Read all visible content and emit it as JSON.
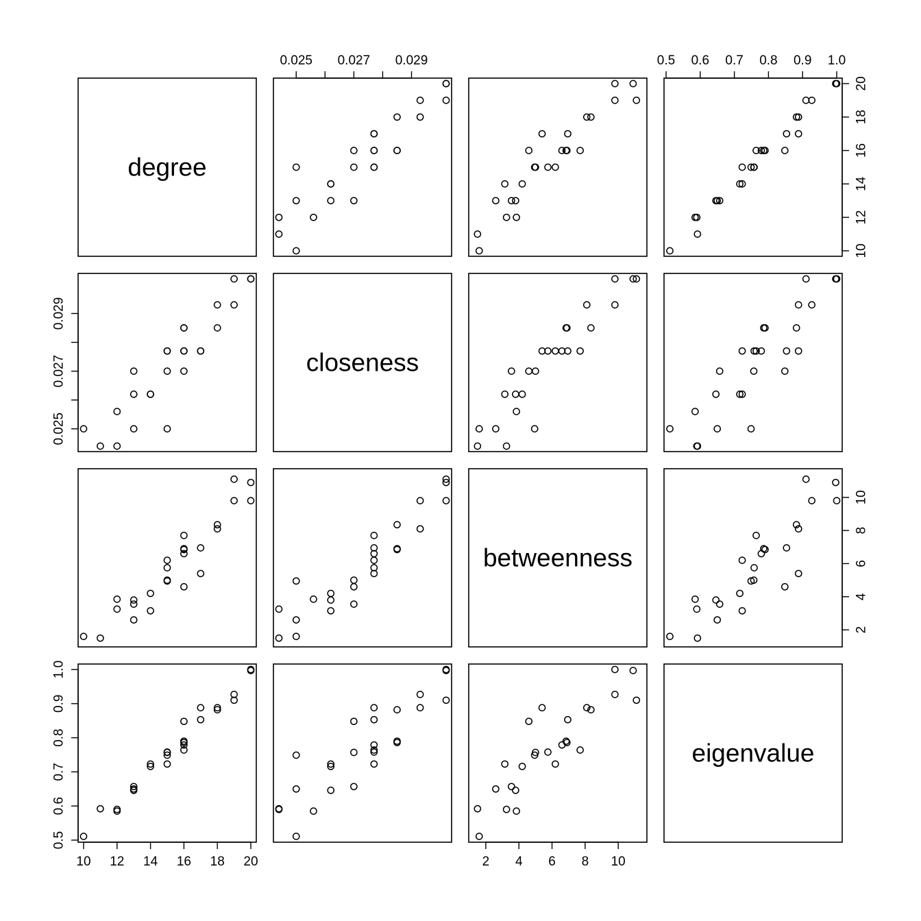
{
  "chart_data": {
    "type": "scatter",
    "title": "",
    "variables": [
      "degree",
      "closeness",
      "betweenness",
      "eigenvalue"
    ],
    "ranges": {
      "degree": [
        10,
        20
      ],
      "closeness": [
        0.0244,
        0.0302
      ],
      "betweenness": [
        1.3,
        11.4
      ],
      "eigenvalue": [
        0.51,
        1.0
      ]
    },
    "ticks": {
      "degree": [
        10,
        12,
        14,
        16,
        18,
        20
      ],
      "closeness": [
        0.025,
        0.026,
        0.027,
        0.028,
        0.029
      ],
      "betweenness": [
        2,
        4,
        6,
        8,
        10
      ],
      "eigenvalue": [
        0.5,
        0.6,
        0.7,
        0.8,
        0.9,
        1.0
      ]
    },
    "tick_labels": {
      "degree": [
        "10",
        "12",
        "14",
        "16",
        "18",
        "20"
      ],
      "closeness": [
        "0.025",
        "",
        "0.027",
        "",
        "0.029"
      ],
      "betweenness": [
        "2",
        "4",
        "6",
        "8",
        "10"
      ],
      "eigenvalue": [
        "0.5",
        "0.6",
        "0.7",
        "0.8",
        "0.9",
        "1.0"
      ]
    },
    "observations": [
      {
        "degree": 20,
        "closeness": 0.0302,
        "betweenness": 9.8,
        "eigenvalue": 1.0
      },
      {
        "degree": 20,
        "closeness": 0.0302,
        "betweenness": 10.9,
        "eigenvalue": 0.997
      },
      {
        "degree": 19,
        "closeness": 0.0302,
        "betweenness": 11.1,
        "eigenvalue": 0.91
      },
      {
        "degree": 19,
        "closeness": 0.0293,
        "betweenness": 9.8,
        "eigenvalue": 0.927
      },
      {
        "degree": 18,
        "closeness": 0.0293,
        "betweenness": 8.1,
        "eigenvalue": 0.888
      },
      {
        "degree": 18,
        "closeness": 0.0285,
        "betweenness": 8.35,
        "eigenvalue": 0.882
      },
      {
        "degree": 17,
        "closeness": 0.0277,
        "betweenness": 5.4,
        "eigenvalue": 0.888
      },
      {
        "degree": 17,
        "closeness": 0.0277,
        "betweenness": 6.95,
        "eigenvalue": 0.853
      },
      {
        "degree": 16,
        "closeness": 0.0285,
        "betweenness": 6.9,
        "eigenvalue": 0.786
      },
      {
        "degree": 16,
        "closeness": 0.0285,
        "betweenness": 6.85,
        "eigenvalue": 0.79
      },
      {
        "degree": 16,
        "closeness": 0.0277,
        "betweenness": 6.6,
        "eigenvalue": 0.779
      },
      {
        "degree": 16,
        "closeness": 0.0277,
        "betweenness": 7.7,
        "eigenvalue": 0.764
      },
      {
        "degree": 16,
        "closeness": 0.027,
        "betweenness": 4.6,
        "eigenvalue": 0.848
      },
      {
        "degree": 15,
        "closeness": 0.0277,
        "betweenness": 6.2,
        "eigenvalue": 0.723
      },
      {
        "degree": 15,
        "closeness": 0.0277,
        "betweenness": 5.75,
        "eigenvalue": 0.758
      },
      {
        "degree": 15,
        "closeness": 0.027,
        "betweenness": 5.0,
        "eigenvalue": 0.757
      },
      {
        "degree": 15,
        "closeness": 0.025,
        "betweenness": 4.95,
        "eigenvalue": 0.749
      },
      {
        "degree": 14,
        "closeness": 0.0262,
        "betweenness": 4.2,
        "eigenvalue": 0.716
      },
      {
        "degree": 14,
        "closeness": 0.0262,
        "betweenness": 3.15,
        "eigenvalue": 0.723
      },
      {
        "degree": 13,
        "closeness": 0.0262,
        "betweenness": 3.8,
        "eigenvalue": 0.646
      },
      {
        "degree": 13,
        "closeness": 0.027,
        "betweenness": 3.55,
        "eigenvalue": 0.657
      },
      {
        "degree": 13,
        "closeness": 0.025,
        "betweenness": 2.6,
        "eigenvalue": 0.65
      },
      {
        "degree": 12,
        "closeness": 0.0256,
        "betweenness": 3.85,
        "eigenvalue": 0.585
      },
      {
        "degree": 12,
        "closeness": 0.0244,
        "betweenness": 3.25,
        "eigenvalue": 0.59
      },
      {
        "degree": 11,
        "closeness": 0.0244,
        "betweenness": 1.5,
        "eigenvalue": 0.592
      },
      {
        "degree": 10,
        "closeness": 0.025,
        "betweenness": 1.6,
        "eigenvalue": 0.511
      }
    ],
    "grid": false,
    "legend": "none"
  }
}
